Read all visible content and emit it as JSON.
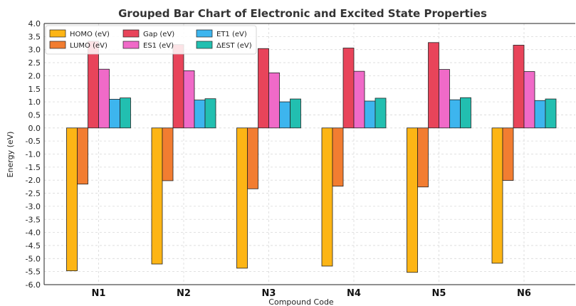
{
  "chart_data": {
    "type": "bar",
    "title": "Grouped Bar Chart of Electronic and Excited State Properties",
    "xlabel": "Compound Code",
    "ylabel": "Energy (eV)",
    "categories": [
      "N1",
      "N2",
      "N3",
      "N4",
      "N5",
      "N6"
    ],
    "ylim": [
      -6.0,
      4.0
    ],
    "yticks": [
      "4.0",
      "3.5",
      "3.0",
      "2.5",
      "2.0",
      "1.5",
      "1.0",
      "0.5",
      "0.0",
      "-0.5",
      "-1.0",
      "-1.5",
      "-2.0",
      "-2.5",
      "-3.0",
      "-3.5",
      "-4.0",
      "-4.5",
      "-5.0",
      "-5.5",
      "-6.0"
    ],
    "grid": true,
    "legend_position": "top-left",
    "series": [
      {
        "name": "HOMO (eV)",
        "color": "#FDB515",
        "values": [
          -5.47,
          -5.21,
          -5.37,
          -5.29,
          -5.53,
          -5.18
        ]
      },
      {
        "name": "LUMO (eV)",
        "color": "#F27D31",
        "values": [
          -2.15,
          -2.02,
          -2.33,
          -2.23,
          -2.26,
          -2.01
        ]
      },
      {
        "name": "Gap (eV)",
        "color": "#E8445A",
        "values": [
          3.32,
          3.19,
          3.04,
          3.06,
          3.27,
          3.17
        ]
      },
      {
        "name": "ES1 (eV)",
        "color": "#F06AC8",
        "values": [
          2.25,
          2.19,
          2.11,
          2.17,
          2.24,
          2.16
        ]
      },
      {
        "name": "ET1 (eV)",
        "color": "#3DB5EE",
        "values": [
          1.1,
          1.07,
          1.0,
          1.03,
          1.08,
          1.05
        ]
      },
      {
        "name": "ΔEST (eV)",
        "color": "#22BFB0",
        "values": [
          1.15,
          1.12,
          1.11,
          1.14,
          1.16,
          1.11
        ]
      }
    ]
  }
}
